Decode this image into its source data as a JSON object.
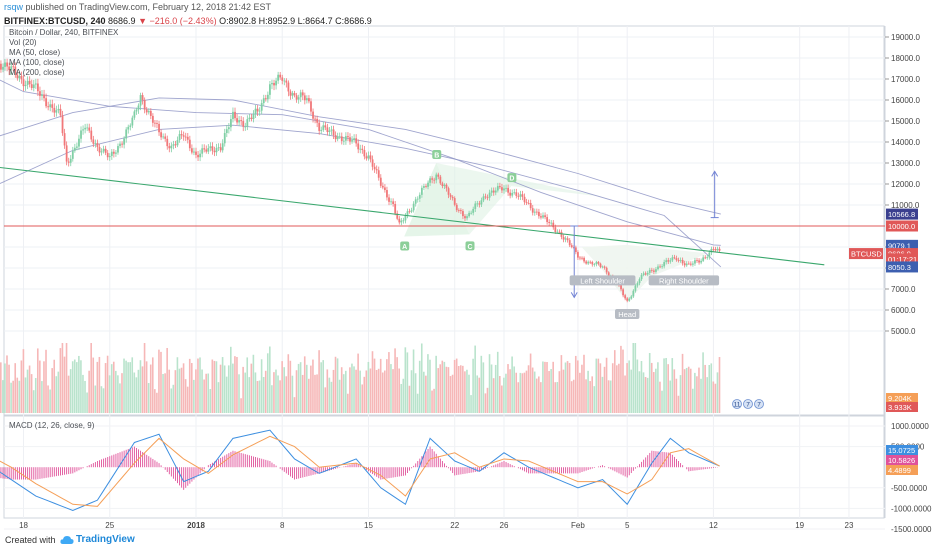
{
  "header": {
    "author": "rsqw",
    "published": "published on TradingView.com, February 12, 2018 21:42 EST",
    "symbol": "BITFINEX:BTCUSD, 240",
    "last": "8686.9",
    "change": "−216.0 (−2.43%)",
    "ohlc": "O:8902.8 H:8952.9 L:8664.7 C:8686.9"
  },
  "legend": {
    "title": "Bitcoin / Dollar, 240, BITFINEX",
    "vol": "Vol (20)",
    "ma50": "MA (50, close)",
    "ma100": "MA (100, close)",
    "ma200": "MA (200, close)"
  },
  "macd_legend": "MACD (12, 26, close, 9)",
  "footer": {
    "created": "Created with",
    "brand": "TradingView"
  },
  "colors": {
    "up": "#7fcfa5",
    "down": "#f17779",
    "vol_up": "#b9e3cc",
    "vol_down": "#f6b7b7",
    "trend": "#3aa76d",
    "resistance": "#e05858",
    "ma": "#8f95c6",
    "macd": "#3d8fe0",
    "signal": "#f59f57",
    "hist": "#e0529a",
    "pattern": "#dff2e4",
    "badge": "#8ccf99",
    "projection": "#7283d4"
  },
  "chart_data": {
    "price_panel": {
      "type": "candlestick",
      "ylim": [
        5000,
        19500
      ],
      "y_ticks": [
        "19000.0",
        "18000.0",
        "17000.0",
        "16000.0",
        "15000.0",
        "14000.0",
        "13000.0",
        "12000.0",
        "11000.0",
        "9000.0",
        "8000.0",
        "7000.0",
        "6000.0",
        "5000.0"
      ],
      "x_tick_labels": [
        "18",
        "25",
        "2018",
        "8",
        "15",
        "22",
        "26",
        "Feb",
        "5",
        "12",
        "19",
        "23"
      ],
      "x_tick_days": [
        -14,
        -7,
        0,
        7,
        14,
        21,
        25,
        31,
        35,
        42,
        49,
        53
      ],
      "candle_days": [
        -17.5,
        42.6
      ],
      "close_anchors": [
        [
          -17.5,
          18400
        ],
        [
          -15,
          17400
        ],
        [
          -13,
          16500
        ],
        [
          -11,
          15200
        ],
        [
          -10.5,
          13000
        ],
        [
          -9,
          14700
        ],
        [
          -8,
          13800
        ],
        [
          -7,
          13200
        ],
        [
          -6,
          14100
        ],
        [
          -5,
          15200
        ],
        [
          -4.5,
          16200
        ],
        [
          -3,
          14400
        ],
        [
          -2,
          13800
        ],
        [
          -1,
          14300
        ],
        [
          0,
          13400
        ],
        [
          2,
          13800
        ],
        [
          3,
          15200
        ],
        [
          4,
          14900
        ],
        [
          5,
          15400
        ],
        [
          6,
          16700
        ],
        [
          7,
          17000
        ],
        [
          8,
          16200
        ],
        [
          9,
          16000
        ],
        [
          10,
          14700
        ],
        [
          11,
          14400
        ],
        [
          12,
          14200
        ],
        [
          13,
          13900
        ],
        [
          14,
          13300
        ],
        [
          15,
          12000
        ],
        [
          16,
          11000
        ],
        [
          16.5,
          10000
        ],
        [
          18,
          11400
        ],
        [
          19.5,
          12500
        ],
        [
          21,
          11000
        ],
        [
          22,
          10400
        ],
        [
          23.5,
          11500
        ],
        [
          25,
          11800
        ],
        [
          26,
          11500
        ],
        [
          27,
          11000
        ],
        [
          28.5,
          10200
        ],
        [
          29.5,
          9700
        ],
        [
          31,
          8600
        ],
        [
          32,
          8200
        ],
        [
          33,
          8100
        ],
        [
          34,
          7400
        ],
        [
          35,
          6400
        ],
        [
          36,
          7500
        ],
        [
          37,
          7900
        ],
        [
          38,
          8200
        ],
        [
          39,
          8500
        ],
        [
          40,
          8100
        ],
        [
          41,
          8400
        ],
        [
          42,
          8900
        ],
        [
          42.6,
          8687
        ]
      ],
      "moving_averages": [
        {
          "name": "MA (50, close)",
          "points": [
            [
              -17.5,
              17400
            ],
            [
              -14,
              16400
            ],
            [
              -7,
              15700
            ],
            [
              0,
              15400
            ],
            [
              7,
              15300
            ],
            [
              14,
              14600
            ],
            [
              21,
              13200
            ],
            [
              28,
              11600
            ],
            [
              35,
              10200
            ],
            [
              42,
              9100
            ],
            [
              42.6,
              9079
            ]
          ]
        },
        {
          "name": "MA (100, close)",
          "points": [
            [
              -17.5,
              14000
            ],
            [
              -10,
              15400
            ],
            [
              -3,
              16100
            ],
            [
              3,
              16000
            ],
            [
              10,
              15200
            ],
            [
              17,
              14600
            ],
            [
              24,
              13600
            ],
            [
              31,
              12500
            ],
            [
              38,
              11200
            ],
            [
              42.6,
              10567
            ]
          ]
        },
        {
          "name": "MA (200, close)",
          "points": [
            [
              -17.5,
              11600
            ],
            [
              -10,
              13600
            ],
            [
              -3,
              14600
            ],
            [
              3,
              14800
            ],
            [
              10,
              14400
            ],
            [
              17,
              13700
            ],
            [
              24,
              12800
            ],
            [
              31,
              11700
            ],
            [
              38,
              10500
            ],
            [
              42.6,
              8050
            ]
          ]
        }
      ],
      "trendline": [
        [
          -19,
          13000
        ],
        [
          51,
          8150
        ]
      ],
      "horizontal_line": 10000,
      "patterns": [
        {
          "name": "harmonic",
          "points": {
            "A": [
              16.9,
              9500
            ],
            "B": [
              19.5,
              13000
            ],
            "C": [
              22.2,
              9600
            ],
            "D": [
              25.6,
              11900
            ]
          }
        },
        {
          "name": "head-and-shoulders",
          "labels": [
            "Left Shoulder",
            "Head",
            "Right Shoulder"
          ]
        }
      ],
      "projections": [
        [
          [
            30.7,
            10000
          ],
          [
            30.7,
            6600
          ]
        ],
        [
          [
            42.1,
            10400
          ],
          [
            42.1,
            12600
          ]
        ]
      ],
      "price_labels": [
        {
          "label": "10566.8",
          "value": 10566.8
        },
        {
          "label": "10000.0",
          "value": 10000
        },
        {
          "label": "9079.1",
          "value": 9079.1
        },
        {
          "label": "8686.9",
          "value": 8686.9
        },
        {
          "label": "01:17:21",
          "value": 8436
        },
        {
          "label": "8050.3",
          "value": 8050.3
        }
      ],
      "symbol_tag": "BTCUSD"
    },
    "volume_panel": {
      "type": "bar",
      "labels": [
        "9.204K",
        "3.933K"
      ],
      "badges": [
        "11",
        "7",
        "7"
      ]
    },
    "macd_panel": {
      "type": "line",
      "ylim": [
        -1700,
        1200
      ],
      "y_ticks": [
        "1000.0000",
        "500.0000",
        "-500.0000",
        "-1000.0000",
        "-1500.0000"
      ],
      "series_labels": [
        "15.0725",
        "10.5826",
        "4.4899"
      ],
      "macd_anchors": [
        [
          -17.5,
          200
        ],
        [
          -15,
          -300
        ],
        [
          -13,
          -700
        ],
        [
          -10,
          -1050
        ],
        [
          -8,
          -800
        ],
        [
          -5,
          600
        ],
        [
          -3,
          800
        ],
        [
          -1,
          -350
        ],
        [
          1,
          -100
        ],
        [
          3,
          700
        ],
        [
          6,
          900
        ],
        [
          8,
          200
        ],
        [
          10,
          -150
        ],
        [
          13,
          200
        ],
        [
          15,
          -500
        ],
        [
          17,
          -900
        ],
        [
          19,
          700
        ],
        [
          21,
          150
        ],
        [
          23,
          -100
        ],
        [
          25,
          350
        ],
        [
          27,
          0
        ],
        [
          29,
          -250
        ],
        [
          31,
          -500
        ],
        [
          33,
          -300
        ],
        [
          35,
          -900
        ],
        [
          37,
          100
        ],
        [
          38.5,
          700
        ],
        [
          40,
          350
        ],
        [
          42.6,
          15
        ]
      ],
      "signal_anchors": [
        [
          -17.5,
          400
        ],
        [
          -15,
          0
        ],
        [
          -13,
          -400
        ],
        [
          -10,
          -900
        ],
        [
          -8,
          -950
        ],
        [
          -5,
          100
        ],
        [
          -3,
          700
        ],
        [
          -1,
          200
        ],
        [
          1,
          -150
        ],
        [
          3,
          300
        ],
        [
          6,
          750
        ],
        [
          8,
          500
        ],
        [
          10,
          0
        ],
        [
          13,
          100
        ],
        [
          15,
          -200
        ],
        [
          17,
          -700
        ],
        [
          19,
          200
        ],
        [
          21,
          350
        ],
        [
          23,
          0
        ],
        [
          25,
          200
        ],
        [
          27,
          150
        ],
        [
          29,
          -100
        ],
        [
          31,
          -350
        ],
        [
          33,
          -350
        ],
        [
          35,
          -650
        ],
        [
          37,
          -300
        ],
        [
          38.5,
          350
        ],
        [
          40,
          450
        ],
        [
          42.6,
          10.6
        ]
      ]
    }
  }
}
